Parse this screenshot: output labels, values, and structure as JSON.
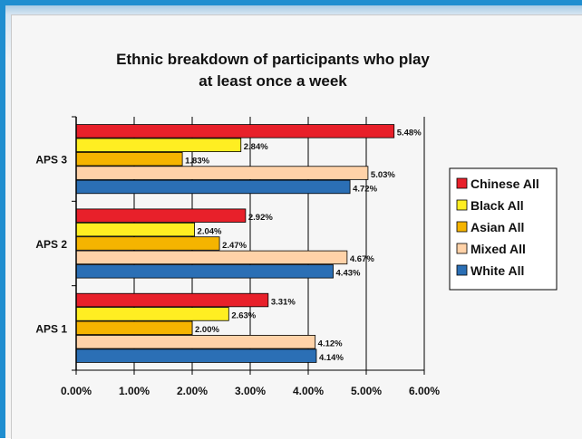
{
  "chart_data": {
    "type": "bar",
    "orientation": "horizontal",
    "title_lines": [
      "Ethnic breakdown of participants who play",
      "at least once a week"
    ],
    "categories": [
      "APS 3",
      "APS 2",
      "APS 1"
    ],
    "series": [
      {
        "name": "Chinese All",
        "color": "#e8202a",
        "values": [
          5.48,
          2.92,
          3.31
        ],
        "labels": [
          "5.48%",
          "2.92%",
          "3.31%"
        ]
      },
      {
        "name": "Black All",
        "color": "#ffee22",
        "values": [
          2.84,
          2.04,
          2.63
        ],
        "labels": [
          "2.84%",
          "2.04%",
          "2.63%"
        ]
      },
      {
        "name": "Asian All",
        "color": "#f5b400",
        "values": [
          1.83,
          2.47,
          2.0
        ],
        "labels": [
          "1.83%",
          "2.47%",
          "2.00%"
        ]
      },
      {
        "name": "Mixed All",
        "color": "#ffd2a8",
        "values": [
          5.03,
          4.67,
          4.12
        ],
        "labels": [
          "5.03%",
          "4.67%",
          "4.12%"
        ]
      },
      {
        "name": "White All",
        "color": "#2b6fb5",
        "values": [
          4.72,
          4.43,
          4.14
        ],
        "labels": [
          "4.72%",
          "4.43%",
          "4.14%"
        ]
      }
    ],
    "x_ticks": [
      "0.00%",
      "1.00%",
      "2.00%",
      "3.00%",
      "4.00%",
      "5.00%",
      "6.00%"
    ],
    "xlim": [
      0,
      6
    ],
    "grid": "vertical",
    "legend": "right"
  }
}
